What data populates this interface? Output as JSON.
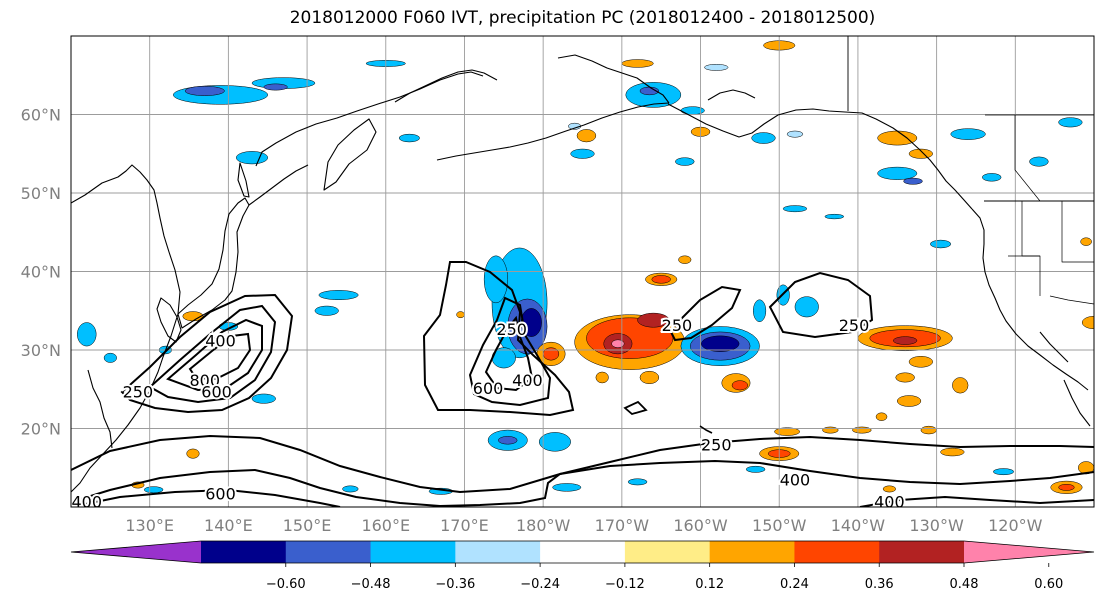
{
  "title": "2018012000 F060 IVT, precipitation PC (2018012400 - 2018012500)",
  "map": {
    "lon_range": [
      120,
      250
    ],
    "lat_range": [
      10,
      70
    ],
    "lon_ticks": [
      130,
      140,
      150,
      160,
      170,
      180,
      190,
      200,
      210,
      220,
      230,
      240
    ],
    "lon_tick_labels": [
      "130°E",
      "140°E",
      "150°E",
      "160°E",
      "170°E",
      "180°W",
      "170°W",
      "160°W",
      "150°W",
      "140°W",
      "130°W",
      "120°W"
    ],
    "lat_ticks": [
      20,
      30,
      40,
      50,
      60
    ],
    "lat_tick_labels": [
      "20°N",
      "30°N",
      "40°N",
      "50°N",
      "60°N"
    ],
    "grid": true,
    "ivt_contour_labels": [
      {
        "text": "250",
        "lon": 128.5,
        "lat": 24.5
      },
      {
        "text": "400",
        "lon": 139,
        "lat": 31
      },
      {
        "text": "800",
        "lon": 137,
        "lat": 26
      },
      {
        "text": "600",
        "lon": 138.5,
        "lat": 24.5
      },
      {
        "text": "250",
        "lon": 176,
        "lat": 32.5
      },
      {
        "text": "600",
        "lon": 173,
        "lat": 25
      },
      {
        "text": "400",
        "lon": 178,
        "lat": 26
      },
      {
        "text": "250",
        "lon": 197,
        "lat": 33
      },
      {
        "text": "250",
        "lon": 219.5,
        "lat": 33
      },
      {
        "text": "250",
        "lon": 202,
        "lat": 17.8
      },
      {
        "text": "400",
        "lon": 212,
        "lat": 13.3
      },
      {
        "text": "600",
        "lon": 139,
        "lat": 11.5
      },
      {
        "text": "400",
        "lon": 224,
        "lat": 10.5
      },
      {
        "text": "400",
        "lon": 122,
        "lat": 10.5
      }
    ]
  },
  "colorbar": {
    "tick_labels": [
      "−0.60",
      "−0.48",
      "−0.36",
      "−0.24",
      "−0.12",
      "0.12",
      "0.24",
      "0.36",
      "0.48",
      "0.60"
    ],
    "colors": [
      "#9932cc",
      "#00008b",
      "#3a5fcd",
      "#00bfff",
      "#b0e2ff",
      "#ffffff",
      "#ffed87",
      "#ffa500",
      "#ff4500",
      "#b22222",
      "#ff82ab"
    ]
  },
  "precip_anomaly_patches": [
    {
      "lon": 139,
      "lat": 62.5,
      "rx": 6,
      "ry": 1.2,
      "color": "#00bfff"
    },
    {
      "lon": 137,
      "lat": 63,
      "rx": 2.5,
      "ry": 0.6,
      "color": "#3a5fcd"
    },
    {
      "lon": 147,
      "lat": 64,
      "rx": 4,
      "ry": 0.7,
      "color": "#00bfff"
    },
    {
      "lon": 146,
      "lat": 63.5,
      "rx": 1.5,
      "ry": 0.4,
      "color": "#3a5fcd"
    },
    {
      "lon": 160,
      "lat": 66.5,
      "rx": 2.5,
      "ry": 0.4,
      "color": "#00bfff"
    },
    {
      "lon": 194,
      "lat": 62.5,
      "rx": 3.5,
      "ry": 1.6,
      "color": "#00bfff"
    },
    {
      "lon": 193.5,
      "lat": 63,
      "rx": 1.2,
      "ry": 0.5,
      "color": "#3a5fcd"
    },
    {
      "lon": 202,
      "lat": 66,
      "rx": 1.5,
      "ry": 0.4,
      "color": "#b0e2ff"
    },
    {
      "lon": 210,
      "lat": 68.8,
      "rx": 2,
      "ry": 0.6,
      "color": "#ffa500"
    },
    {
      "lon": 192,
      "lat": 66.5,
      "rx": 2,
      "ry": 0.5,
      "color": "#ffa500"
    },
    {
      "lon": 199,
      "lat": 60.5,
      "rx": 1.5,
      "ry": 0.5,
      "color": "#00bfff"
    },
    {
      "lon": 184,
      "lat": 58.5,
      "rx": 0.8,
      "ry": 0.4,
      "color": "#b0e2ff"
    },
    {
      "lon": 143,
      "lat": 54.5,
      "rx": 2,
      "ry": 0.8,
      "color": "#00bfff"
    },
    {
      "lon": 163,
      "lat": 57,
      "rx": 1.3,
      "ry": 0.5,
      "color": "#00bfff"
    },
    {
      "lon": 185,
      "lat": 55,
      "rx": 1.5,
      "ry": 0.6,
      "color": "#00bfff"
    },
    {
      "lon": 198,
      "lat": 54,
      "rx": 1.2,
      "ry": 0.5,
      "color": "#00bfff"
    },
    {
      "lon": 185.5,
      "lat": 57.3,
      "rx": 1.2,
      "ry": 0.8,
      "color": "#ffa500"
    },
    {
      "lon": 200,
      "lat": 57.8,
      "rx": 1.2,
      "ry": 0.6,
      "color": "#ffa500"
    },
    {
      "lon": 208,
      "lat": 57,
      "rx": 1.5,
      "ry": 0.7,
      "color": "#00bfff"
    },
    {
      "lon": 212,
      "lat": 57.5,
      "rx": 1,
      "ry": 0.4,
      "color": "#b0e2ff"
    },
    {
      "lon": 225,
      "lat": 57,
      "rx": 2.5,
      "ry": 0.9,
      "color": "#ffa500"
    },
    {
      "lon": 228,
      "lat": 55,
      "rx": 1.5,
      "ry": 0.6,
      "color": "#ffa500"
    },
    {
      "lon": 225,
      "lat": 52.5,
      "rx": 2.5,
      "ry": 0.8,
      "color": "#00bfff"
    },
    {
      "lon": 227,
      "lat": 51.5,
      "rx": 1.2,
      "ry": 0.4,
      "color": "#3a5fcd"
    },
    {
      "lon": 234,
      "lat": 57.5,
      "rx": 2.2,
      "ry": 0.7,
      "color": "#00bfff"
    },
    {
      "lon": 243,
      "lat": 54,
      "rx": 1.2,
      "ry": 0.6,
      "color": "#00bfff"
    },
    {
      "lon": 247,
      "lat": 59,
      "rx": 1.5,
      "ry": 0.6,
      "color": "#00bfff"
    },
    {
      "lon": 237,
      "lat": 52,
      "rx": 1.2,
      "ry": 0.5,
      "color": "#00bfff"
    },
    {
      "lon": 212,
      "lat": 48,
      "rx": 1.5,
      "ry": 0.4,
      "color": "#00bfff"
    },
    {
      "lon": 217,
      "lat": 47,
      "rx": 1.2,
      "ry": 0.3,
      "color": "#00bfff"
    },
    {
      "lon": 230.5,
      "lat": 43.5,
      "rx": 1.3,
      "ry": 0.5,
      "color": "#00bfff"
    },
    {
      "lon": 249,
      "lat": 43.8,
      "rx": 0.7,
      "ry": 0.5,
      "color": "#ffa500"
    },
    {
      "lon": 154,
      "lat": 37,
      "rx": 2.5,
      "ry": 0.6,
      "color": "#00bfff"
    },
    {
      "lon": 152.5,
      "lat": 35,
      "rx": 1.5,
      "ry": 0.6,
      "color": "#00bfff"
    },
    {
      "lon": 135.5,
      "lat": 34.3,
      "rx": 1.3,
      "ry": 0.6,
      "color": "#ffa500"
    },
    {
      "lon": 140,
      "lat": 33,
      "rx": 1.2,
      "ry": 0.5,
      "color": "#00bfff"
    },
    {
      "lon": 122,
      "lat": 32,
      "rx": 1.2,
      "ry": 1.5,
      "color": "#00bfff"
    },
    {
      "lon": 125,
      "lat": 29,
      "rx": 0.8,
      "ry": 0.6,
      "color": "#00bfff"
    },
    {
      "lon": 132,
      "lat": 30,
      "rx": 0.8,
      "ry": 0.5,
      "color": "#00bfff"
    },
    {
      "lon": 144.5,
      "lat": 23.8,
      "rx": 1.5,
      "ry": 0.6,
      "color": "#00bfff"
    },
    {
      "lon": 177,
      "lat": 36,
      "rx": 3.5,
      "ry": 7,
      "color": "#00bfff"
    },
    {
      "lon": 174,
      "lat": 39,
      "rx": 1.5,
      "ry": 3,
      "color": "#00bfff"
    },
    {
      "lon": 178,
      "lat": 33,
      "rx": 2.5,
      "ry": 3.5,
      "color": "#3a5fcd"
    },
    {
      "lon": 178.5,
      "lat": 33.5,
      "rx": 1.3,
      "ry": 1.8,
      "color": "#00008b"
    },
    {
      "lon": 175,
      "lat": 29,
      "rx": 1.5,
      "ry": 1.3,
      "color": "#00bfff"
    },
    {
      "lon": 181,
      "lat": 29.5,
      "rx": 1.8,
      "ry": 1.5,
      "color": "#ffa500"
    },
    {
      "lon": 181,
      "lat": 29.5,
      "rx": 1,
      "ry": 0.8,
      "color": "#ff4500"
    },
    {
      "lon": 175.5,
      "lat": 18.5,
      "rx": 2.5,
      "ry": 1.3,
      "color": "#00bfff"
    },
    {
      "lon": 175.5,
      "lat": 18.5,
      "rx": 1.2,
      "ry": 0.5,
      "color": "#3a5fcd"
    },
    {
      "lon": 181.5,
      "lat": 18.3,
      "rx": 2,
      "ry": 1.2,
      "color": "#00bfff"
    },
    {
      "lon": 191,
      "lat": 31,
      "rx": 7,
      "ry": 3.5,
      "color": "#ffa500"
    },
    {
      "lon": 191,
      "lat": 31.5,
      "rx": 5.5,
      "ry": 2.6,
      "color": "#ff4500"
    },
    {
      "lon": 189.5,
      "lat": 30.8,
      "rx": 1.8,
      "ry": 1.3,
      "color": "#b22222"
    },
    {
      "lon": 189.5,
      "lat": 30.8,
      "rx": 0.8,
      "ry": 0.5,
      "color": "#ff82ab"
    },
    {
      "lon": 194,
      "lat": 33.8,
      "rx": 2,
      "ry": 0.9,
      "color": "#b22222"
    },
    {
      "lon": 195,
      "lat": 39,
      "rx": 2,
      "ry": 0.8,
      "color": "#ffa500"
    },
    {
      "lon": 195,
      "lat": 39,
      "rx": 1.2,
      "ry": 0.5,
      "color": "#ff4500"
    },
    {
      "lon": 198,
      "lat": 41.5,
      "rx": 0.8,
      "ry": 0.5,
      "color": "#ffa500"
    },
    {
      "lon": 193.5,
      "lat": 26.5,
      "rx": 1.2,
      "ry": 0.8,
      "color": "#ffa500"
    },
    {
      "lon": 202.5,
      "lat": 30.5,
      "rx": 5,
      "ry": 2.5,
      "color": "#00bfff"
    },
    {
      "lon": 202.5,
      "lat": 30.5,
      "rx": 3.8,
      "ry": 1.8,
      "color": "#3a5fcd"
    },
    {
      "lon": 202.5,
      "lat": 30.8,
      "rx": 2.4,
      "ry": 1.0,
      "color": "#00008b"
    },
    {
      "lon": 204.5,
      "lat": 25.8,
      "rx": 1.8,
      "ry": 1.2,
      "color": "#ffa500"
    },
    {
      "lon": 205,
      "lat": 25.5,
      "rx": 1,
      "ry": 0.6,
      "color": "#ff4500"
    },
    {
      "lon": 207.5,
      "lat": 35,
      "rx": 0.8,
      "ry": 1.4,
      "color": "#00bfff"
    },
    {
      "lon": 213.5,
      "lat": 35.5,
      "rx": 1.5,
      "ry": 1.3,
      "color": "#00bfff"
    },
    {
      "lon": 210.5,
      "lat": 37,
      "rx": 0.8,
      "ry": 1.3,
      "color": "#00bfff"
    },
    {
      "lon": 226,
      "lat": 31.5,
      "rx": 6,
      "ry": 1.6,
      "color": "#ffa500"
    },
    {
      "lon": 226,
      "lat": 31.5,
      "rx": 4.5,
      "ry": 1.1,
      "color": "#ff4500"
    },
    {
      "lon": 226,
      "lat": 31.2,
      "rx": 1.5,
      "ry": 0.5,
      "color": "#b22222"
    },
    {
      "lon": 228,
      "lat": 28.5,
      "rx": 1.5,
      "ry": 0.7,
      "color": "#ffa500"
    },
    {
      "lon": 226,
      "lat": 26.5,
      "rx": 1.2,
      "ry": 0.6,
      "color": "#ffa500"
    },
    {
      "lon": 233,
      "lat": 25.5,
      "rx": 1,
      "ry": 1,
      "color": "#ffa500"
    },
    {
      "lon": 211,
      "lat": 19.6,
      "rx": 1.6,
      "ry": 0.5,
      "color": "#ffa500"
    },
    {
      "lon": 216.5,
      "lat": 19.8,
      "rx": 1,
      "ry": 0.4,
      "color": "#ffa500"
    },
    {
      "lon": 220.5,
      "lat": 19.8,
      "rx": 1.2,
      "ry": 0.4,
      "color": "#ffa500"
    },
    {
      "lon": 229,
      "lat": 19.8,
      "rx": 1,
      "ry": 0.5,
      "color": "#ffa500"
    },
    {
      "lon": 223,
      "lat": 21.5,
      "rx": 0.7,
      "ry": 0.5,
      "color": "#ffa500"
    },
    {
      "lon": 226.5,
      "lat": 23.5,
      "rx": 1.5,
      "ry": 0.7,
      "color": "#ffa500"
    },
    {
      "lon": 210,
      "lat": 16.8,
      "rx": 2.5,
      "ry": 0.9,
      "color": "#ffa500"
    },
    {
      "lon": 210,
      "lat": 16.8,
      "rx": 1.4,
      "ry": 0.5,
      "color": "#ff4500"
    },
    {
      "lon": 207,
      "lat": 14.8,
      "rx": 1.2,
      "ry": 0.4,
      "color": "#00bfff"
    },
    {
      "lon": 232,
      "lat": 17,
      "rx": 1.5,
      "ry": 0.5,
      "color": "#ffa500"
    },
    {
      "lon": 238.5,
      "lat": 14.5,
      "rx": 1.3,
      "ry": 0.4,
      "color": "#00bfff"
    },
    {
      "lon": 246.5,
      "lat": 12.5,
      "rx": 2,
      "ry": 0.8,
      "color": "#ffa500"
    },
    {
      "lon": 246.5,
      "lat": 12.5,
      "rx": 1,
      "ry": 0.4,
      "color": "#ff4500"
    },
    {
      "lon": 249,
      "lat": 15,
      "rx": 1,
      "ry": 0.8,
      "color": "#ffa500"
    },
    {
      "lon": 135.5,
      "lat": 16.8,
      "rx": 0.8,
      "ry": 0.6,
      "color": "#ffa500"
    },
    {
      "lon": 128.5,
      "lat": 12.8,
      "rx": 0.8,
      "ry": 0.4,
      "color": "#ffa500"
    },
    {
      "lon": 130.5,
      "lat": 12.2,
      "rx": 1.2,
      "ry": 0.4,
      "color": "#00bfff"
    },
    {
      "lon": 155.5,
      "lat": 12.3,
      "rx": 1,
      "ry": 0.4,
      "color": "#00bfff"
    },
    {
      "lon": 167,
      "lat": 12,
      "rx": 1.5,
      "ry": 0.4,
      "color": "#00bfff"
    },
    {
      "lon": 183,
      "lat": 12.5,
      "rx": 1.8,
      "ry": 0.5,
      "color": "#00bfff"
    },
    {
      "lon": 192,
      "lat": 13.2,
      "rx": 1.2,
      "ry": 0.4,
      "color": "#00bfff"
    },
    {
      "lon": 169.5,
      "lat": 34.5,
      "rx": 0.5,
      "ry": 0.4,
      "color": "#ffa500"
    },
    {
      "lon": 187.5,
      "lat": 26.5,
      "rx": 0.8,
      "ry": 0.7,
      "color": "#ffa500"
    },
    {
      "lon": 224,
      "lat": 12.3,
      "rx": 0.8,
      "ry": 0.4,
      "color": "#ffa500"
    },
    {
      "lon": 250,
      "lat": 33.5,
      "rx": 1.5,
      "ry": 0.8,
      "color": "#ffa500"
    }
  ]
}
